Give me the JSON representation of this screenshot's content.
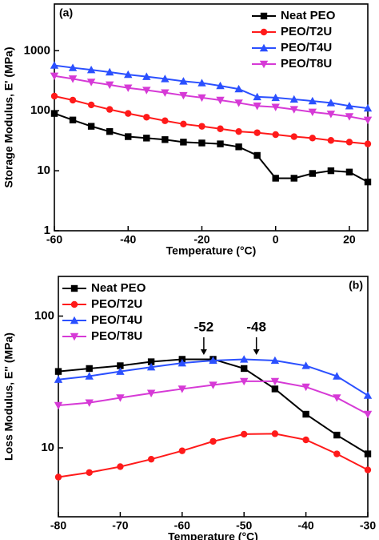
{
  "chart_data": [
    {
      "type": "line",
      "panel_label": "(a)",
      "x_label": "Temperature (°C)",
      "y_label": "Storage Modulus, E' (MPa)",
      "x": [
        -60,
        -55,
        -50,
        -45,
        -40,
        -35,
        -30,
        -25,
        -20,
        -15,
        -10,
        -5,
        0,
        5,
        10,
        15,
        20,
        25
      ],
      "xlim": [
        -60,
        25
      ],
      "xticks": [
        -60,
        -40,
        -20,
        0,
        20
      ],
      "ylim": [
        1,
        6000
      ],
      "yticks": [
        1,
        10,
        100,
        1000
      ],
      "log_y": true,
      "legend": "upper right",
      "series": [
        {
          "name": "Neat PEO",
          "color": "#000000",
          "marker": "square",
          "values": [
            90,
            70,
            55,
            45,
            37,
            35,
            33,
            30,
            29,
            28,
            25,
            18,
            7.5,
            7.5,
            9,
            10,
            9.5,
            6.5
          ]
        },
        {
          "name": "PEO/T2U",
          "color": "#ff1a1a",
          "marker": "circle",
          "values": [
            175,
            150,
            125,
            105,
            90,
            78,
            68,
            60,
            55,
            50,
            45,
            43,
            40,
            37,
            35,
            32,
            30,
            28
          ]
        },
        {
          "name": "PEO/T4U",
          "color": "#2b50ff",
          "marker": "triangle-up",
          "values": [
            570,
            520,
            480,
            440,
            400,
            370,
            340,
            310,
            290,
            260,
            230,
            170,
            165,
            155,
            145,
            135,
            120,
            110
          ]
        },
        {
          "name": "PEO/T8U",
          "color": "#d63ad6",
          "marker": "triangle-down",
          "values": [
            380,
            340,
            300,
            270,
            240,
            220,
            200,
            180,
            165,
            150,
            135,
            120,
            115,
            105,
            95,
            88,
            80,
            70
          ]
        }
      ]
    },
    {
      "type": "line",
      "panel_label": "(b)",
      "x_label": "Temperature (°C)",
      "y_label": "Loss Modulus, E'' (MPa)",
      "x": [
        -80,
        -75,
        -70,
        -65,
        -60,
        -55,
        -50,
        -45,
        -40,
        -35,
        -30
      ],
      "xlim": [
        -80,
        -30
      ],
      "xticks": [
        -80,
        -70,
        -60,
        -50,
        -40,
        -30
      ],
      "ylim": [
        3,
        200
      ],
      "yticks": [
        10,
        100
      ],
      "log_y": true,
      "legend": "upper left",
      "annotations": [
        {
          "text": "-52",
          "x": -56.5,
          "y": 48
        },
        {
          "text": "-48",
          "x": -48,
          "y": 48
        }
      ],
      "series": [
        {
          "name": "Neat PEO",
          "color": "#000000",
          "marker": "square",
          "values": [
            38,
            40,
            42,
            45,
            47,
            47,
            40,
            28,
            18,
            12.5,
            9
          ]
        },
        {
          "name": "PEO/T2U",
          "color": "#ff1a1a",
          "marker": "circle",
          "values": [
            6,
            6.5,
            7.2,
            8.2,
            9.5,
            11.2,
            12.7,
            12.8,
            11.5,
            9,
            6.8
          ]
        },
        {
          "name": "PEO/T4U",
          "color": "#2b50ff",
          "marker": "triangle-up",
          "values": [
            33,
            35,
            38,
            41,
            44,
            46,
            47,
            46,
            42,
            35,
            25
          ]
        },
        {
          "name": "PEO/T8U",
          "color": "#d63ad6",
          "marker": "triangle-down",
          "values": [
            21,
            22,
            24,
            26,
            28,
            30,
            32,
            32,
            29,
            24,
            18
          ]
        }
      ]
    }
  ]
}
